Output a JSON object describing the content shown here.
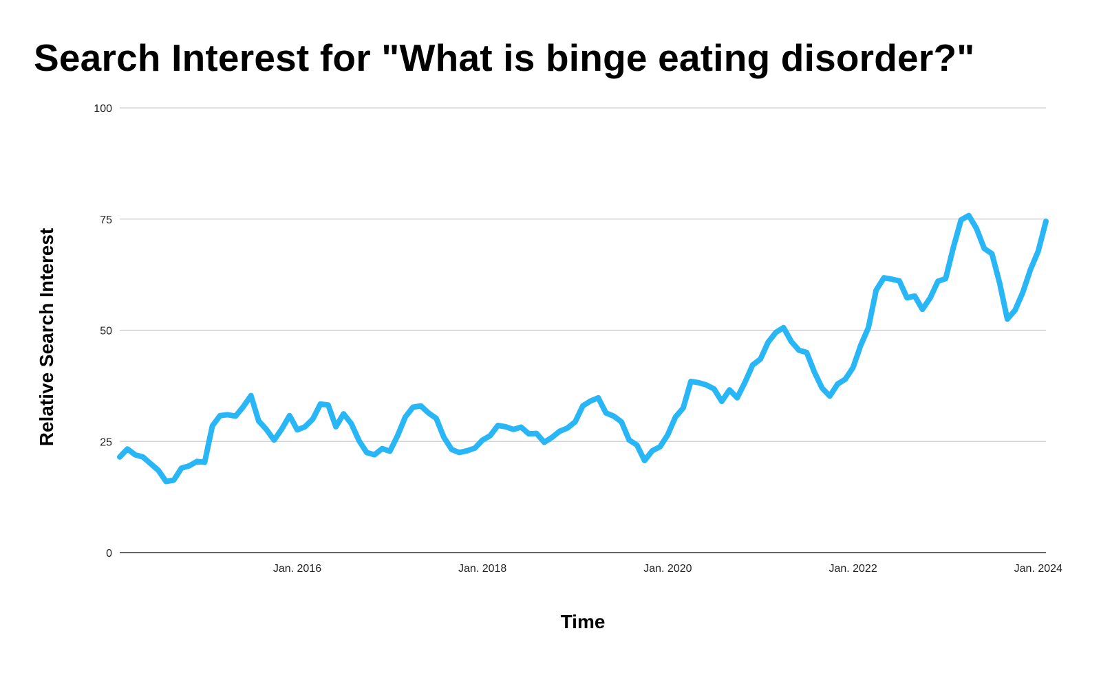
{
  "chart_data": {
    "type": "line",
    "title": "Search Interest for \"What is binge eating disorder?\"",
    "xlabel": "Time",
    "ylabel": "Relative Search Interest",
    "ylim": [
      0,
      100
    ],
    "yticks": [
      0,
      25,
      50,
      75,
      100
    ],
    "xlim": [
      "2014-02",
      "2024-02"
    ],
    "xticks": [
      {
        "date": "2016-01",
        "label": "Jan. 2016"
      },
      {
        "date": "2018-01",
        "label": "Jan. 2018"
      },
      {
        "date": "2020-01",
        "label": "Jan. 2020"
      },
      {
        "date": "2022-01",
        "label": "Jan. 2022"
      },
      {
        "date": "2024-01",
        "label": "Jan. 2024"
      }
    ],
    "grid": true,
    "legend": "none",
    "colors": {
      "line": "#29B6F6",
      "grid": "#CCCCCC",
      "axis": "#333333"
    },
    "series": [
      {
        "x": [
          "2014-02",
          "2014-03",
          "2014-04",
          "2014-05",
          "2014-06",
          "2014-07",
          "2014-08",
          "2014-09",
          "2014-10",
          "2014-11",
          "2014-12",
          "2015-01",
          "2015-02",
          "2015-03",
          "2015-04",
          "2015-05",
          "2015-06",
          "2015-07",
          "2015-08",
          "2015-09",
          "2015-10",
          "2015-11",
          "2015-12",
          "2016-01",
          "2016-02",
          "2016-03",
          "2016-04",
          "2016-05",
          "2016-06",
          "2016-07",
          "2016-08",
          "2016-09",
          "2016-10",
          "2016-11",
          "2016-12",
          "2017-01",
          "2017-02",
          "2017-03",
          "2017-04",
          "2017-05",
          "2017-06",
          "2017-07",
          "2017-08",
          "2017-09",
          "2017-10",
          "2017-11",
          "2017-12",
          "2018-01",
          "2018-02",
          "2018-03",
          "2018-04",
          "2018-05",
          "2018-06",
          "2018-07",
          "2018-08",
          "2018-09",
          "2018-10",
          "2018-11",
          "2018-12",
          "2019-01",
          "2019-02",
          "2019-03",
          "2019-04",
          "2019-05",
          "2019-06",
          "2019-07",
          "2019-08",
          "2019-09",
          "2019-10",
          "2019-11",
          "2019-12",
          "2020-01",
          "2020-02",
          "2020-03",
          "2020-04",
          "2020-05",
          "2020-06",
          "2020-07",
          "2020-08",
          "2020-09",
          "2020-10",
          "2020-11",
          "2020-12",
          "2021-01",
          "2021-02",
          "2021-03",
          "2021-04",
          "2021-05",
          "2021-06",
          "2021-07",
          "2021-08",
          "2021-09",
          "2021-10",
          "2021-11",
          "2021-12",
          "2022-01",
          "2022-02",
          "2022-03",
          "2022-04",
          "2022-05",
          "2022-06",
          "2022-07",
          "2022-08",
          "2022-09",
          "2022-10",
          "2022-11",
          "2022-12",
          "2023-01",
          "2023-02",
          "2023-03",
          "2023-04",
          "2023-05",
          "2023-06",
          "2023-07",
          "2023-08",
          "2023-09",
          "2023-10",
          "2023-11",
          "2023-12",
          "2024-01",
          "2024-02"
        ],
        "values": [
          21.5,
          23.3,
          22,
          21.5,
          20,
          18.5,
          16,
          16.3,
          19,
          19.5,
          20.5,
          20.3,
          28.5,
          30.8,
          31,
          30.7,
          32.8,
          35.3,
          29.6,
          27.7,
          25.3,
          27.8,
          30.8,
          27.6,
          28.3,
          30,
          33.4,
          33.2,
          28.3,
          31.2,
          29,
          25.2,
          22.5,
          22,
          23.4,
          22.8,
          26.3,
          30.5,
          32.7,
          33,
          31.4,
          30.2,
          25.9,
          23.2,
          22.5,
          22.9,
          23.5,
          25.3,
          26.3,
          28.6,
          28.3,
          27.7,
          28.2,
          26.7,
          26.8,
          24.8,
          25.9,
          27.3,
          28,
          29.4,
          33,
          34.1,
          34.8,
          31.4,
          30.7,
          29.4,
          25.3,
          24.2,
          20.7,
          22.9,
          23.8,
          26.5,
          30.5,
          32.5,
          38.5,
          38.2,
          37.7,
          36.8,
          34,
          36.6,
          34.8,
          38.3,
          42.2,
          43.5,
          47.3,
          49.5,
          50.6,
          47.5,
          45.5,
          45,
          40.6,
          37,
          35.2,
          37.9,
          39,
          41.6,
          46.6,
          50.6,
          59,
          61.8,
          61.5,
          61.1,
          57.3,
          57.7,
          54.7,
          57.3,
          61,
          61.6,
          68.6,
          74.8,
          75.8,
          72.9,
          68.4,
          67.2,
          60.6,
          52.5,
          54.5,
          58.5,
          63.7,
          67.8,
          74.5
        ]
      }
    ]
  }
}
